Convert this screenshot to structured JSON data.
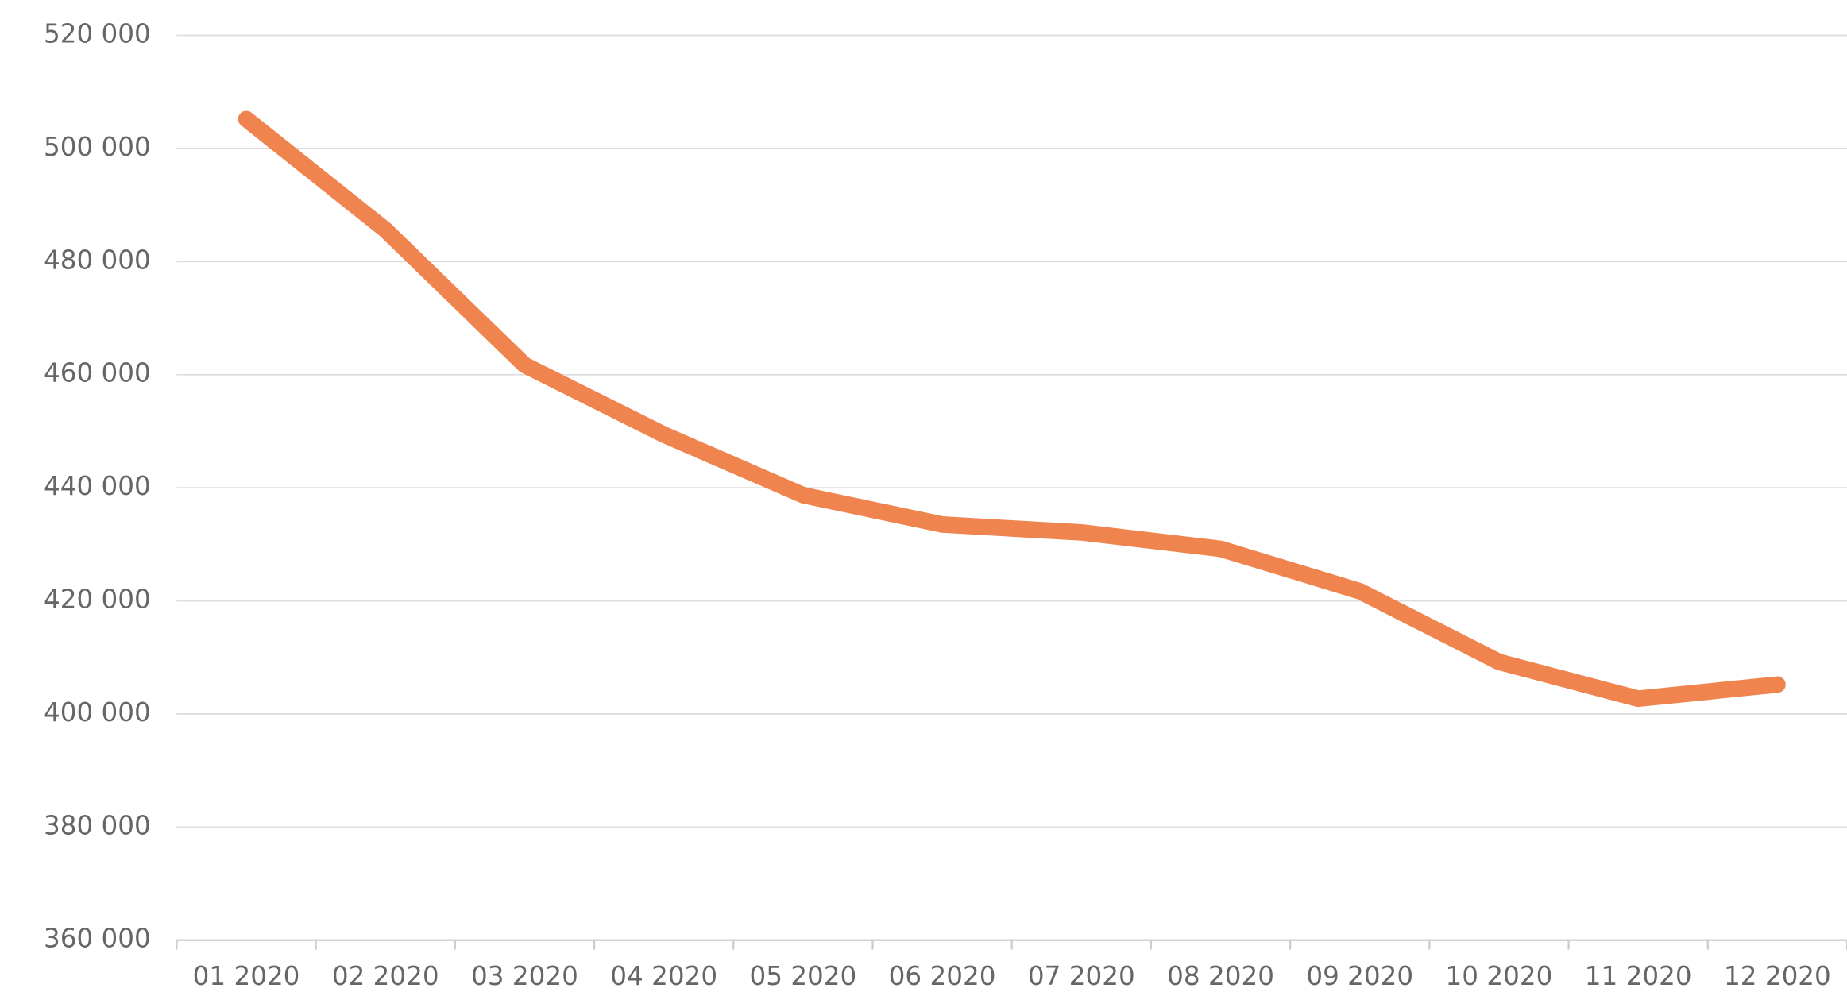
{
  "chart_data": {
    "type": "line",
    "categories": [
      "01 2020",
      "02 2020",
      "03 2020",
      "04 2020",
      "05 2020",
      "06 2020",
      "07 2020",
      "08 2020",
      "09 2020",
      "10 2020",
      "11 2020",
      "12 2020"
    ],
    "values": [
      505200,
      485600,
      461700,
      449400,
      438700,
      433500,
      432100,
      429200,
      421700,
      409200,
      402700,
      405200
    ],
    "color": "#f0844f",
    "ylim": [
      360000,
      520000
    ],
    "yticks": [
      {
        "value": 360000,
        "label": "360 000"
      },
      {
        "value": 380000,
        "label": "380 000"
      },
      {
        "value": 400000,
        "label": "400 000"
      },
      {
        "value": 420000,
        "label": "420 000"
      },
      {
        "value": 440000,
        "label": "440 000"
      },
      {
        "value": 460000,
        "label": "460 000"
      },
      {
        "value": 480000,
        "label": "480 000"
      },
      {
        "value": 500000,
        "label": "500 000"
      },
      {
        "value": 520000,
        "label": "520 000"
      }
    ],
    "grid": true
  }
}
